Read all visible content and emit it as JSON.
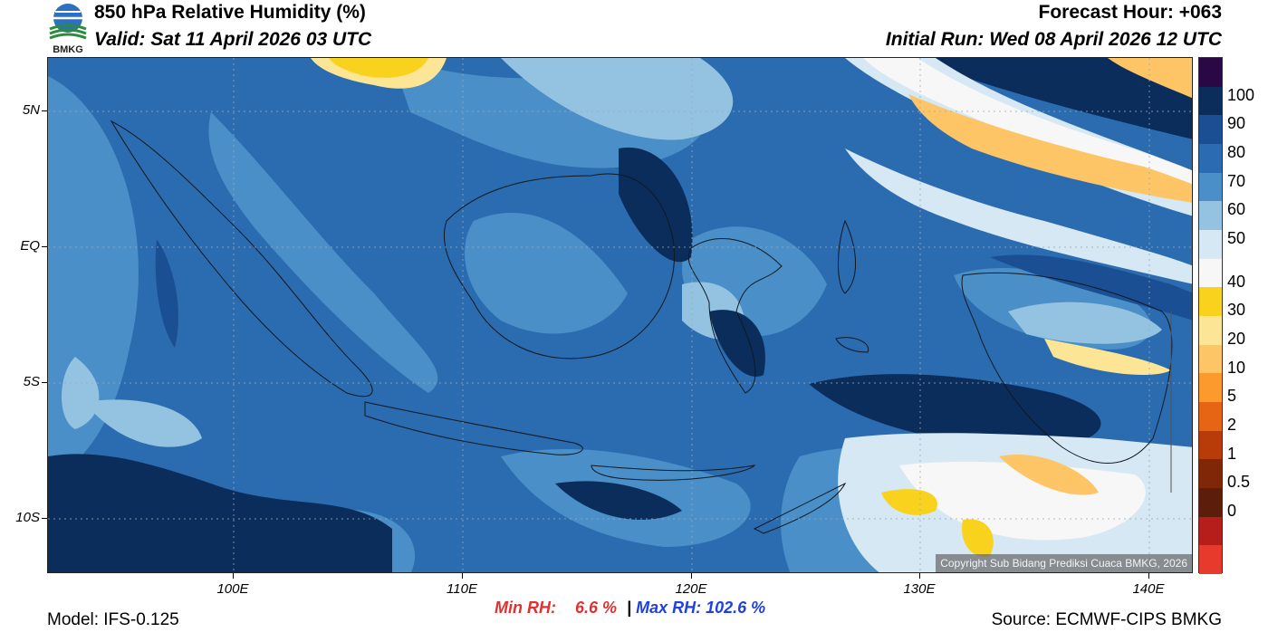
{
  "header": {
    "title": "850 hPa Relative Humidity (%)",
    "valid": "Valid: Sat 11 April 2026 03 UTC",
    "forecast_hour": "Forecast Hour: +063",
    "initial_run": "Initial Run: Wed 08 April 2026 12 UTC"
  },
  "logo": {
    "text": "BMKG"
  },
  "map": {
    "copyright": "Copyright Sub Bidang Prediksi Cuaca BMKG, 2026",
    "lat_labels": [
      "5N",
      "EQ",
      "5S",
      "10S"
    ],
    "lon_labels": [
      "100E",
      "110E",
      "120E",
      "130E",
      "140E"
    ]
  },
  "colorbar": {
    "levels": [
      "100",
      "90",
      "80",
      "70",
      "60",
      "50",
      "40",
      "30",
      "20",
      "10",
      "5",
      "2",
      "1",
      "0.5",
      "0"
    ],
    "colors": [
      "#2a0845",
      "#0b2d5b",
      "#1b4f93",
      "#2b6cb0",
      "#4a8fc7",
      "#93c3e1",
      "#d6e8f3",
      "#f7f7f7",
      "#f8d21d",
      "#fde596",
      "#fdc566",
      "#fd9a2e",
      "#e66514",
      "#b83b0a",
      "#802708",
      "#5c1d0b",
      "#b51e1a",
      "#e53a2c"
    ]
  },
  "footer": {
    "model": "Model: IFS-0.125",
    "min_label": "Min RH:",
    "min_value": "6.6 %",
    "separator": "|",
    "max_label": "Max RH: 102.6 %",
    "source": "Source: ECMWF-CIPS BMKG"
  },
  "colors": {
    "min": "#e03030",
    "max": "#2040e0",
    "sea_dark": "#0b2d5b",
    "dry_yellow": "#f8d21d"
  }
}
